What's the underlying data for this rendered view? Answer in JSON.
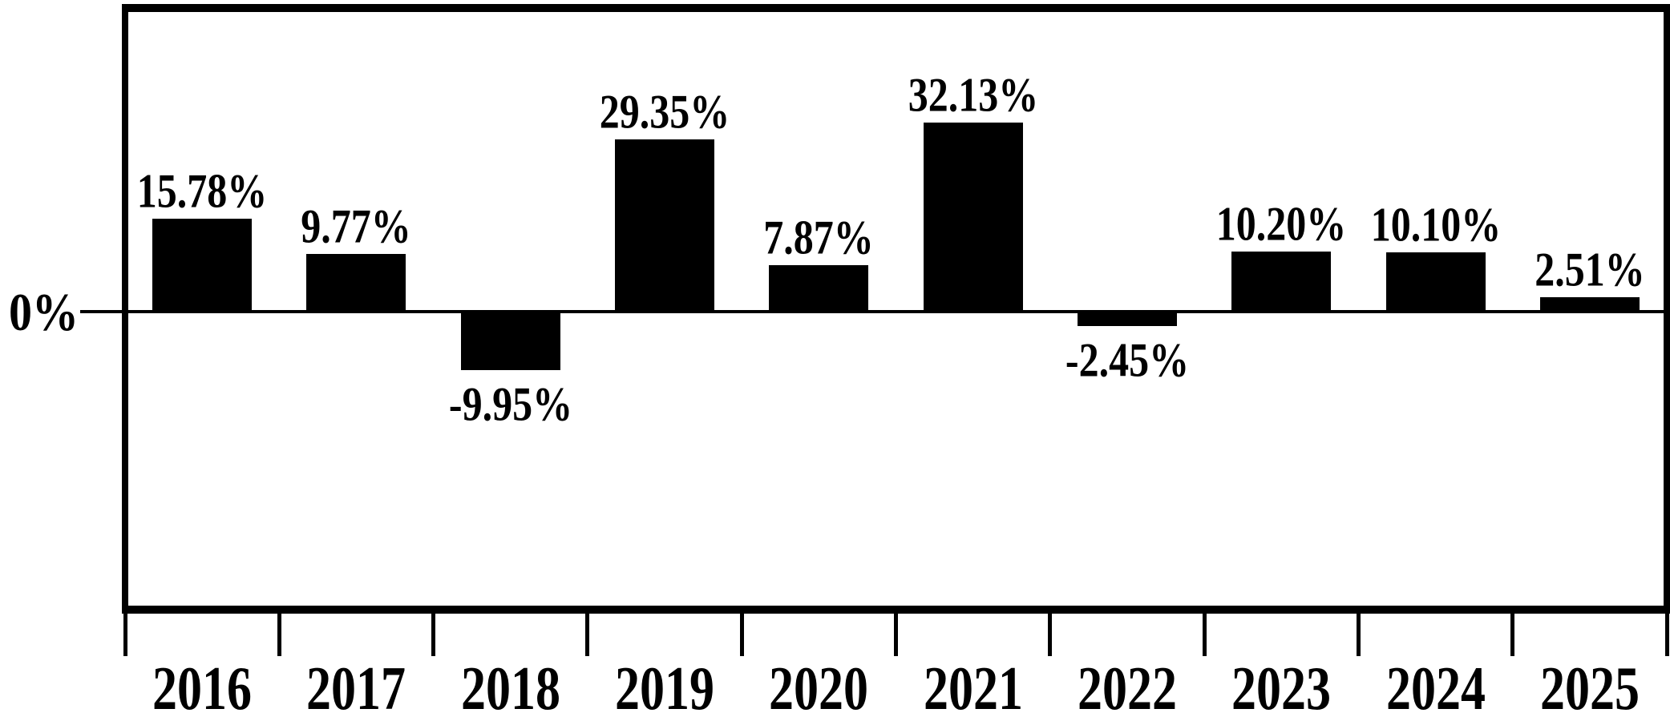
{
  "chart_data": {
    "type": "bar",
    "title": "",
    "xlabel": "",
    "ylabel": "",
    "categories": [
      "2016",
      "2017",
      "2018",
      "2019",
      "2020",
      "2021",
      "2022",
      "2023",
      "2024",
      "2025"
    ],
    "values": [
      15.78,
      9.77,
      -9.95,
      29.35,
      7.87,
      32.13,
      -2.45,
      10.2,
      10.1,
      2.51
    ],
    "bar_labels": [
      "15.78%",
      "9.77%",
      "-9.95%",
      "29.35%",
      "7.87%",
      "32.13%",
      "-2.45%",
      "10.20%",
      "10.10%",
      "2.51%"
    ],
    "zero_label": "0%",
    "ylim": [
      -50.6,
      51.6
    ],
    "grid": false,
    "legend": false,
    "bar_color": "#000000",
    "axis_color": "#000000",
    "background_color": "#ffffff"
  }
}
